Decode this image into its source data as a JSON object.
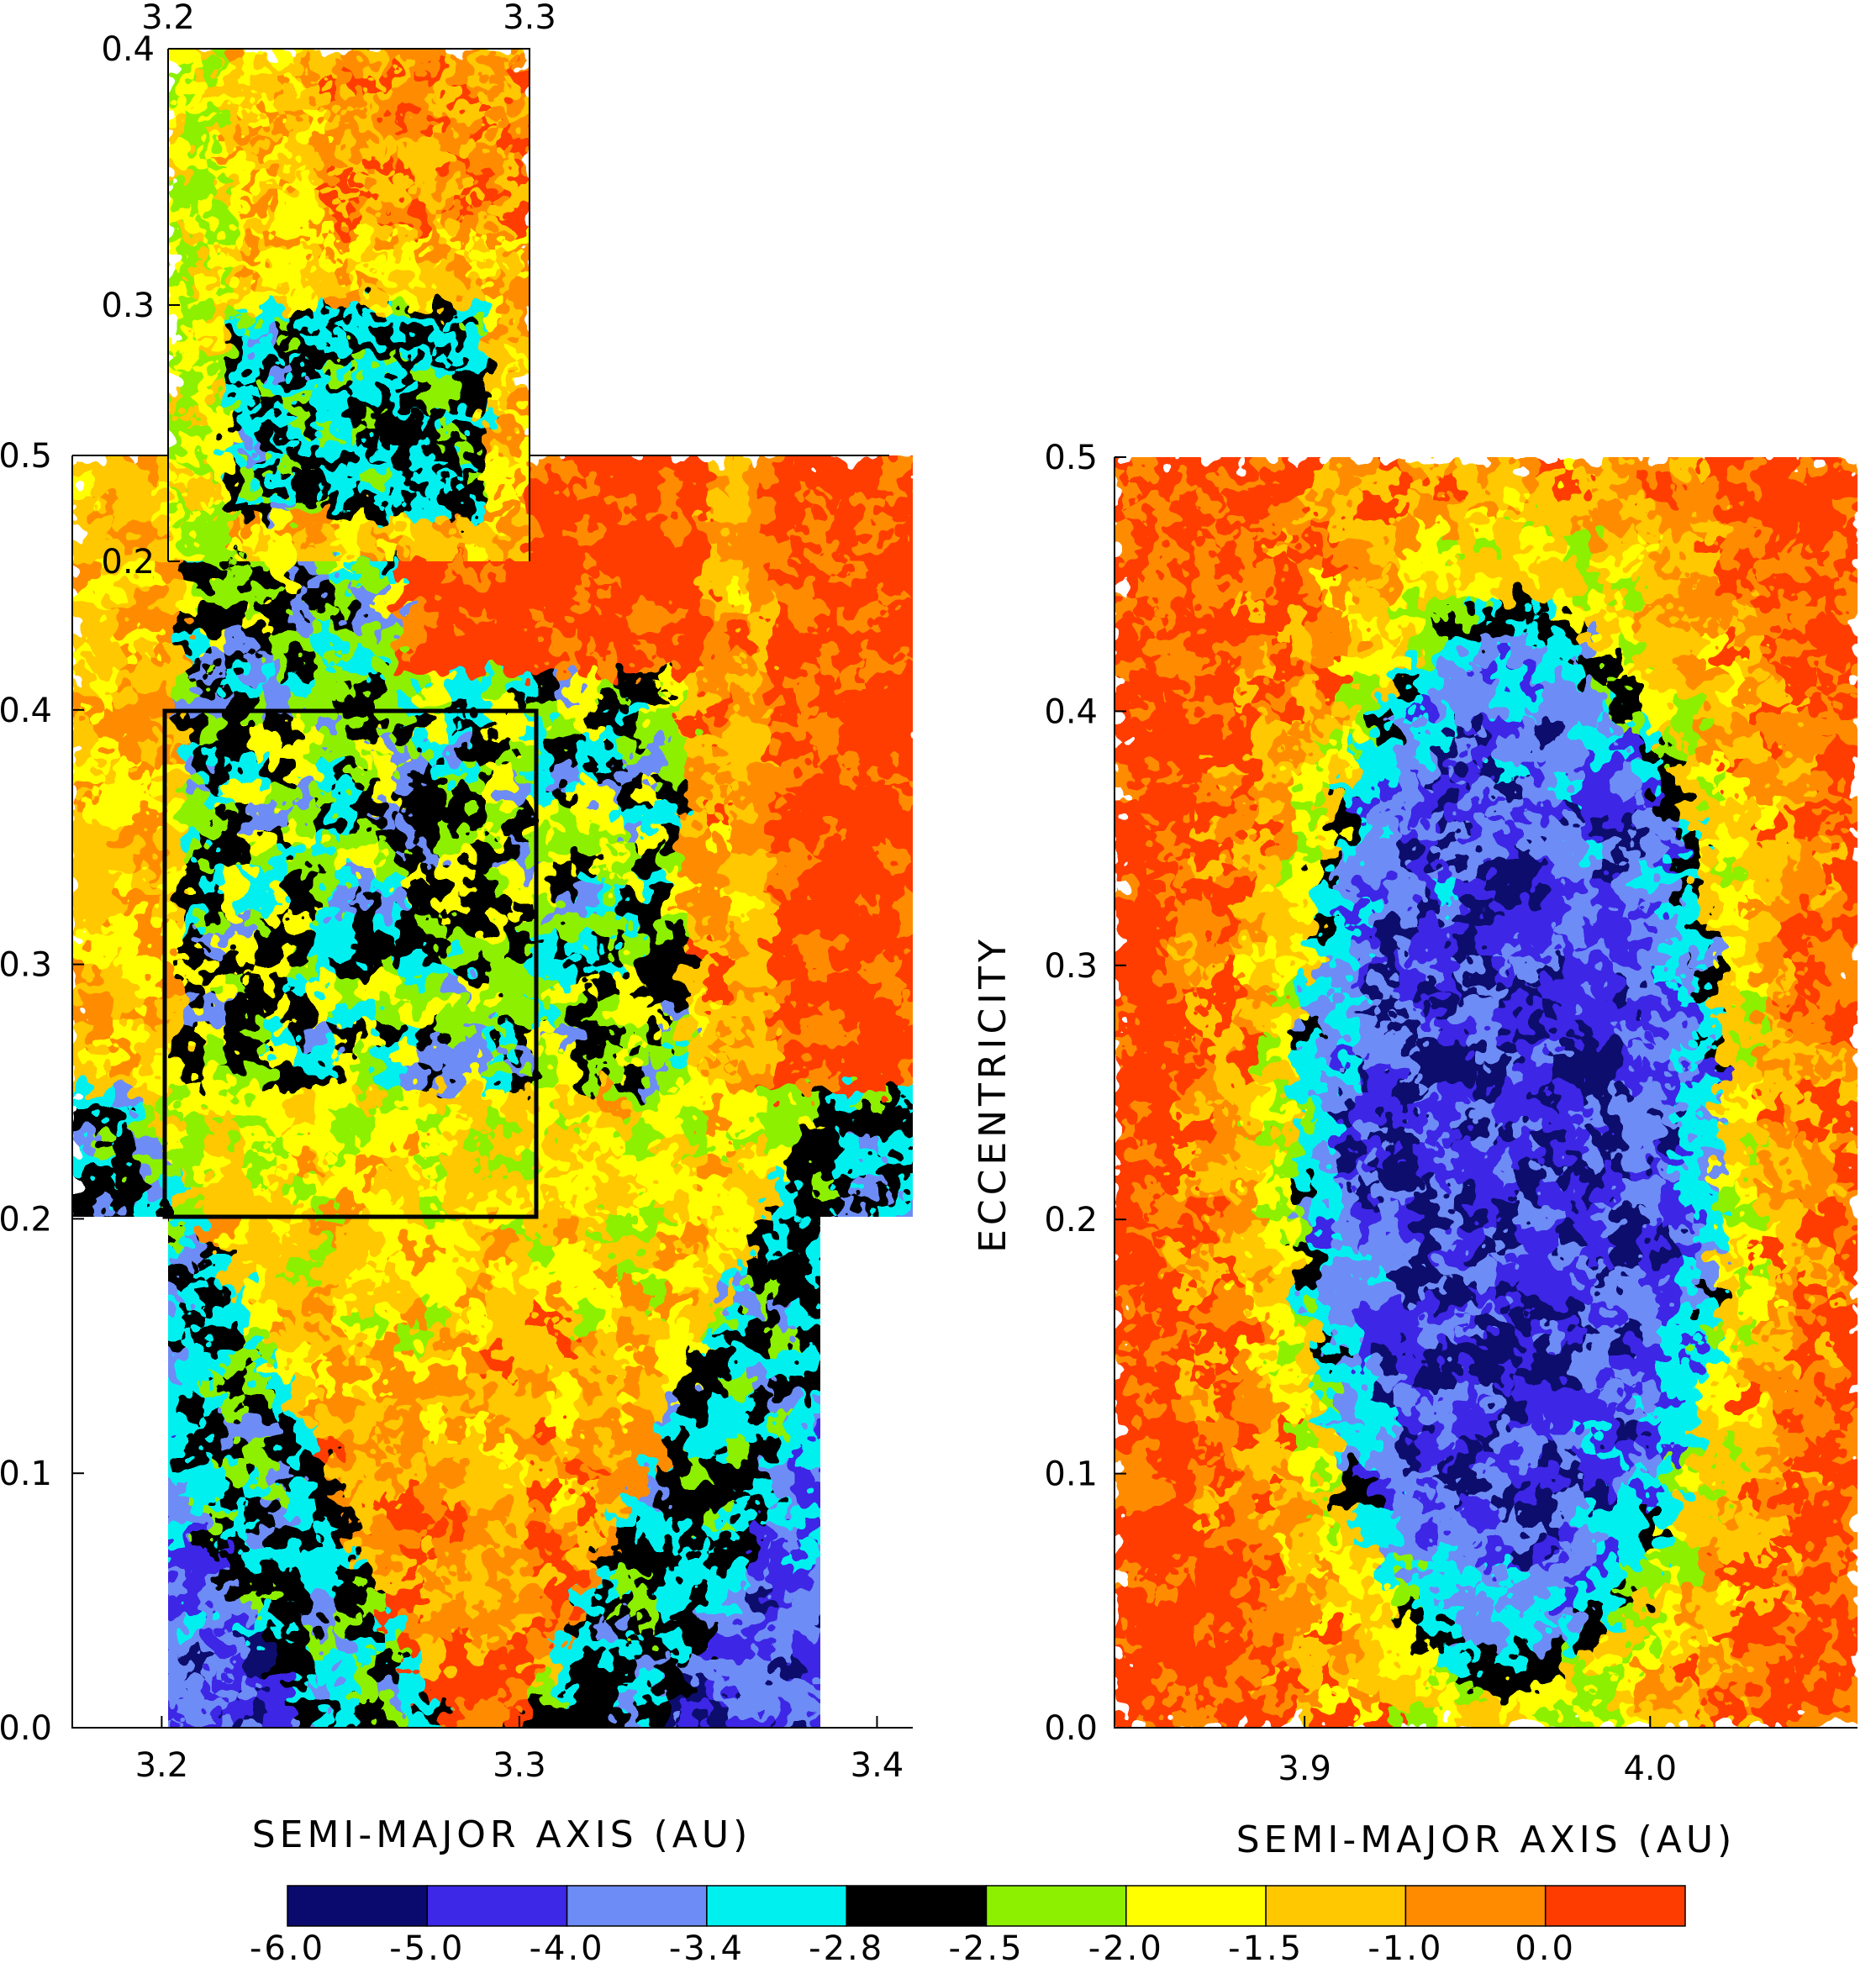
{
  "chart_data": [
    {
      "type": "heatmap",
      "name": "left panel main",
      "xlabel": "SEMI-MAJOR AXIS (AU)",
      "ylabel": "",
      "xlim": [
        3.175,
        3.41
      ],
      "ylim": [
        0.0,
        0.5
      ],
      "x_ticks": [
        "3.2",
        "3.3",
        "3.4"
      ],
      "y_ticks": [
        "0.0",
        "0.1",
        "0.2",
        "0.3",
        "0.4",
        "0.5"
      ],
      "highlight_box": {
        "x": [
          3.2,
          3.3
        ],
        "y": [
          0.2,
          0.4
        ]
      },
      "regions": [
        {
          "x": [
            3.2,
            3.38
          ],
          "y": [
            0.0,
            0.2
          ]
        },
        {
          "x": [
            3.175,
            3.41
          ],
          "y": [
            0.2,
            0.25
          ]
        },
        {
          "x": [
            3.175,
            3.41
          ],
          "y": [
            0.25,
            0.5
          ]
        }
      ]
    },
    {
      "type": "heatmap",
      "name": "left panel inset",
      "xlim": [
        3.2,
        3.3
      ],
      "ylim": [
        0.2,
        0.4
      ],
      "x_ticks": [
        "3.2",
        "3.3"
      ],
      "y_ticks": [
        "0.2",
        "0.3",
        "0.4"
      ]
    },
    {
      "type": "heatmap",
      "name": "right panel",
      "xlabel": "SEMI-MAJOR AXIS (AU)",
      "ylabel": "ECCENTRICITY",
      "xlim": [
        3.845,
        4.06
      ],
      "ylim": [
        0.0,
        0.5
      ],
      "x_ticks": [
        "3.9",
        "4.0"
      ],
      "y_ticks": [
        "0.0",
        "0.1",
        "0.2",
        "0.3",
        "0.4",
        "0.5"
      ]
    }
  ],
  "colorbar": {
    "labels": [
      "-6.0",
      "-5.0",
      "-4.0",
      "-3.4",
      "-2.8",
      "-2.5",
      "-2.0",
      "-1.5",
      "-1.0",
      "0.0"
    ],
    "colors": [
      "#0a0a6e",
      "#3c28e6",
      "#6e8cf5",
      "#00f0f0",
      "#000000",
      "#8cf000",
      "#ffff00",
      "#ffc800",
      "#ff8c00",
      "#ff3c00"
    ]
  }
}
